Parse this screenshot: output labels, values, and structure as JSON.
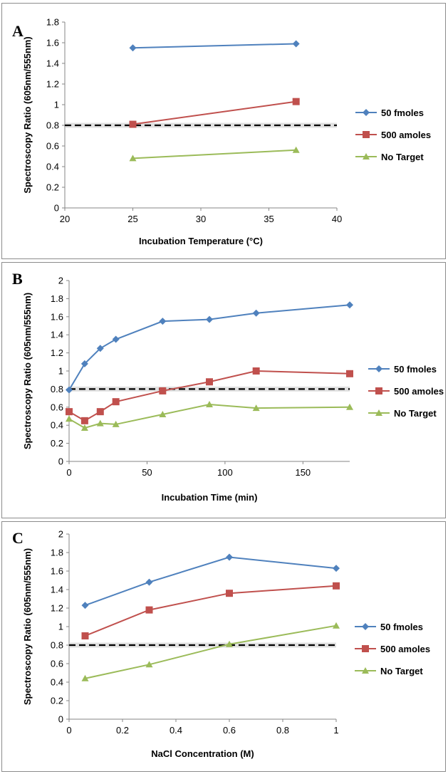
{
  "chart_data": [
    {
      "type": "line",
      "panel_label": "A",
      "title": "",
      "xlabel": "Incubation Temperature (°C)",
      "ylabel": "Spectroscopy Ratio (605nm/555nm)",
      "xlim": [
        20,
        40
      ],
      "ylim": [
        0,
        1.8
      ],
      "xticks": [
        "20",
        "25",
        "30",
        "35",
        "40"
      ],
      "yticks": [
        "0",
        "0.2",
        "0.4",
        "0.6",
        "0.8",
        "1",
        "1.2",
        "1.4",
        "1.6",
        "1.8"
      ],
      "threshold": 0.8,
      "grid": false,
      "legend": "right",
      "series": [
        {
          "name": "50 fmoles",
          "color": "#4f81bd",
          "marker": "diamond",
          "x": [
            25,
            37
          ],
          "y": [
            1.55,
            1.59
          ]
        },
        {
          "name": "500 amoles",
          "color": "#c0504d",
          "marker": "square",
          "x": [
            25,
            37
          ],
          "y": [
            0.81,
            1.03
          ]
        },
        {
          "name": "No Target",
          "color": "#9bbb59",
          "marker": "triangle",
          "x": [
            25,
            37
          ],
          "y": [
            0.48,
            0.56
          ]
        }
      ]
    },
    {
      "type": "line",
      "panel_label": "B",
      "title": "",
      "xlabel": "Incubation Time (min)",
      "ylabel": "Spectroscopy Ratio (605nm/555nm)",
      "xlim": [
        0,
        180
      ],
      "ylim": [
        0,
        2
      ],
      "xticks": [
        "0",
        "50",
        "100",
        "150"
      ],
      "xtick_values": [
        0,
        50,
        100,
        150
      ],
      "yticks": [
        "0",
        "0.2",
        "0.4",
        "0.6",
        "0.8",
        "1",
        "1.2",
        "1.4",
        "1.6",
        "1.8",
        "2"
      ],
      "threshold": 0.8,
      "grid": false,
      "legend": "right",
      "series": [
        {
          "name": "50 fmoles",
          "color": "#4f81bd",
          "marker": "diamond",
          "x": [
            0,
            10,
            20,
            30,
            60,
            90,
            120,
            180
          ],
          "y": [
            0.79,
            1.08,
            1.25,
            1.35,
            1.55,
            1.57,
            1.64,
            1.73
          ]
        },
        {
          "name": "500 amoles",
          "color": "#c0504d",
          "marker": "square",
          "x": [
            0,
            10,
            20,
            30,
            60,
            90,
            120,
            180
          ],
          "y": [
            0.55,
            0.45,
            0.55,
            0.66,
            0.78,
            0.88,
            1.0,
            0.97
          ]
        },
        {
          "name": "No Target",
          "color": "#9bbb59",
          "marker": "triangle",
          "x": [
            0,
            10,
            20,
            30,
            60,
            90,
            120,
            180
          ],
          "y": [
            0.47,
            0.37,
            0.42,
            0.41,
            0.52,
            0.63,
            0.59,
            0.6
          ]
        }
      ]
    },
    {
      "type": "line",
      "panel_label": "C",
      "title": "",
      "xlabel": "NaCl Concentration (M)",
      "ylabel": "Spectroscopy Ratio (605nm/555nm)",
      "xlim": [
        0,
        1
      ],
      "ylim": [
        0,
        2
      ],
      "xticks": [
        "0",
        "0.2",
        "0.4",
        "0.6",
        "0.8",
        "1"
      ],
      "yticks": [
        "0",
        "0.2",
        "0.4",
        "0.6",
        "0.8",
        "1",
        "1.2",
        "1.4",
        "1.6",
        "1.8",
        "2"
      ],
      "threshold": 0.8,
      "grid": false,
      "legend": "right",
      "series": [
        {
          "name": "50 fmoles",
          "color": "#4f81bd",
          "marker": "diamond",
          "x": [
            0.06,
            0.3,
            0.6,
            1.0
          ],
          "y": [
            1.23,
            1.48,
            1.75,
            1.63
          ]
        },
        {
          "name": "500 amoles",
          "color": "#c0504d",
          "marker": "square",
          "x": [
            0.06,
            0.3,
            0.6,
            1.0
          ],
          "y": [
            0.9,
            1.18,
            1.36,
            1.44
          ]
        },
        {
          "name": "No Target",
          "color": "#9bbb59",
          "marker": "triangle",
          "x": [
            0.06,
            0.3,
            0.6,
            1.0
          ],
          "y": [
            0.44,
            0.59,
            0.81,
            1.01
          ]
        }
      ]
    }
  ]
}
